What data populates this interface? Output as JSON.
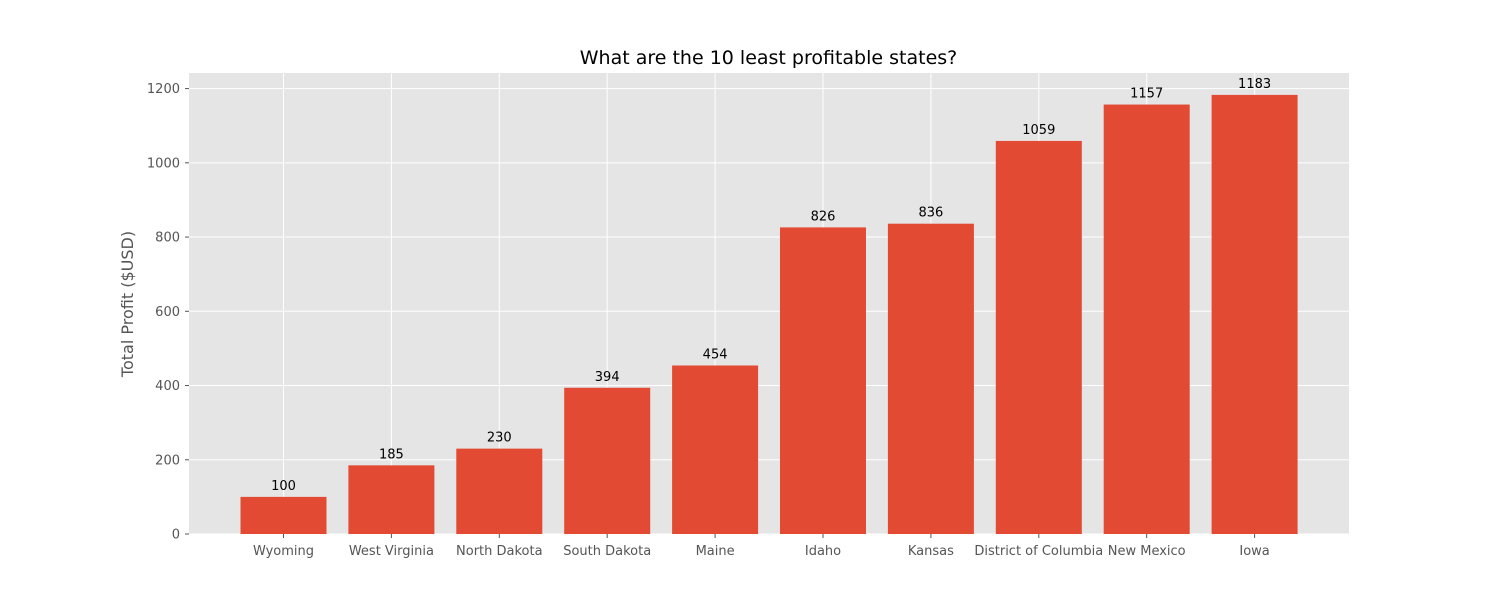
{
  "chart_data": {
    "type": "bar",
    "title": "What are the 10 least profitable states?",
    "xlabel": "",
    "ylabel": "Total Profit ($USD)",
    "categories": [
      "Wyoming",
      "West Virginia",
      "North Dakota",
      "South Dakota",
      "Maine",
      "Idaho",
      "Kansas",
      "District of Columbia",
      "New Mexico",
      "Iowa"
    ],
    "values": [
      100,
      185,
      230,
      394,
      454,
      826,
      836,
      1059,
      1157,
      1183
    ],
    "data_labels": [
      "100",
      "185",
      "230",
      "394",
      "454",
      "826",
      "836",
      "1059",
      "1157",
      "1183"
    ],
    "ylim": [
      0,
      1242
    ],
    "yticks": [
      0,
      200,
      400,
      600,
      800,
      1000,
      1200
    ],
    "grid": true,
    "colors": {
      "bar": "#E24A33",
      "plot_background": "#E5E5E5",
      "grid": "#FFFFFF",
      "tick_text": "#555555",
      "title_text": "#000000"
    }
  }
}
